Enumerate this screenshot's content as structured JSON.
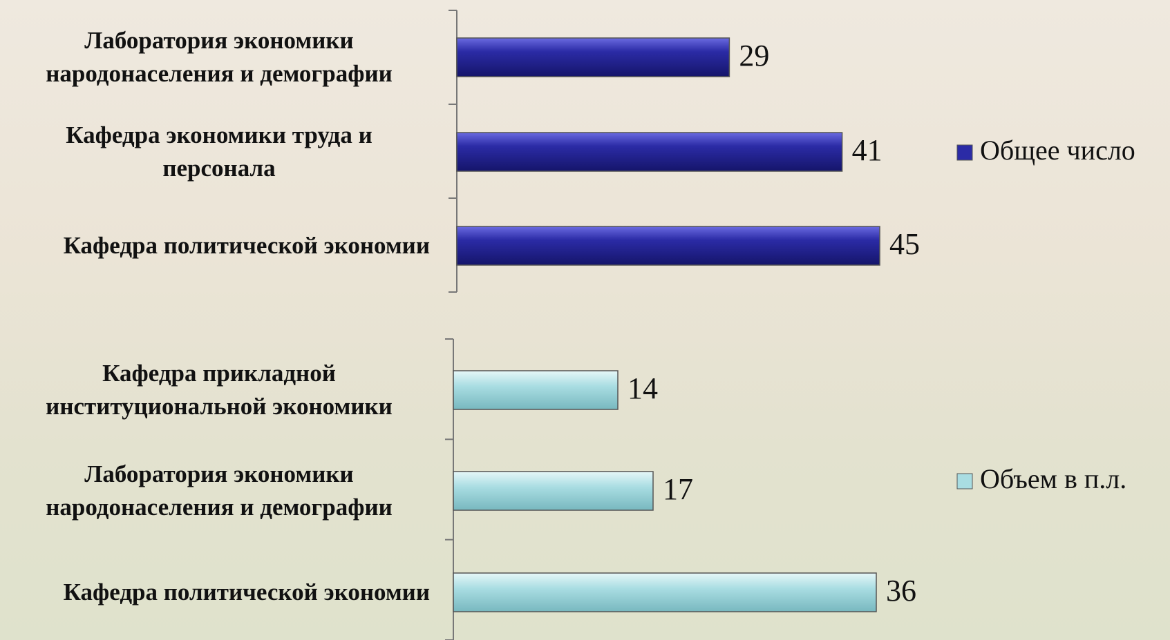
{
  "chart_data": [
    {
      "type": "bar",
      "orientation": "horizontal",
      "categories": [
        "Лаборатория экономики народонаселения и демографии",
        "Кафедра экономики труда и персонала",
        "Кафедра политической экономии"
      ],
      "series": [
        {
          "name": "Общее число",
          "color": "#2b2ba6",
          "values": [
            29,
            41,
            45
          ]
        }
      ],
      "xlim": [
        0,
        50
      ]
    },
    {
      "type": "bar",
      "orientation": "horizontal",
      "categories": [
        "Кафедра прикладной институциональной экономики",
        "Лаборатория экономики народонаселения и демографии",
        "Кафедра политической экономии"
      ],
      "series": [
        {
          "name": "Объем в п.л.",
          "color": "#a9dde2",
          "values": [
            14,
            17,
            36
          ]
        }
      ],
      "xlim": [
        0,
        40
      ]
    }
  ]
}
